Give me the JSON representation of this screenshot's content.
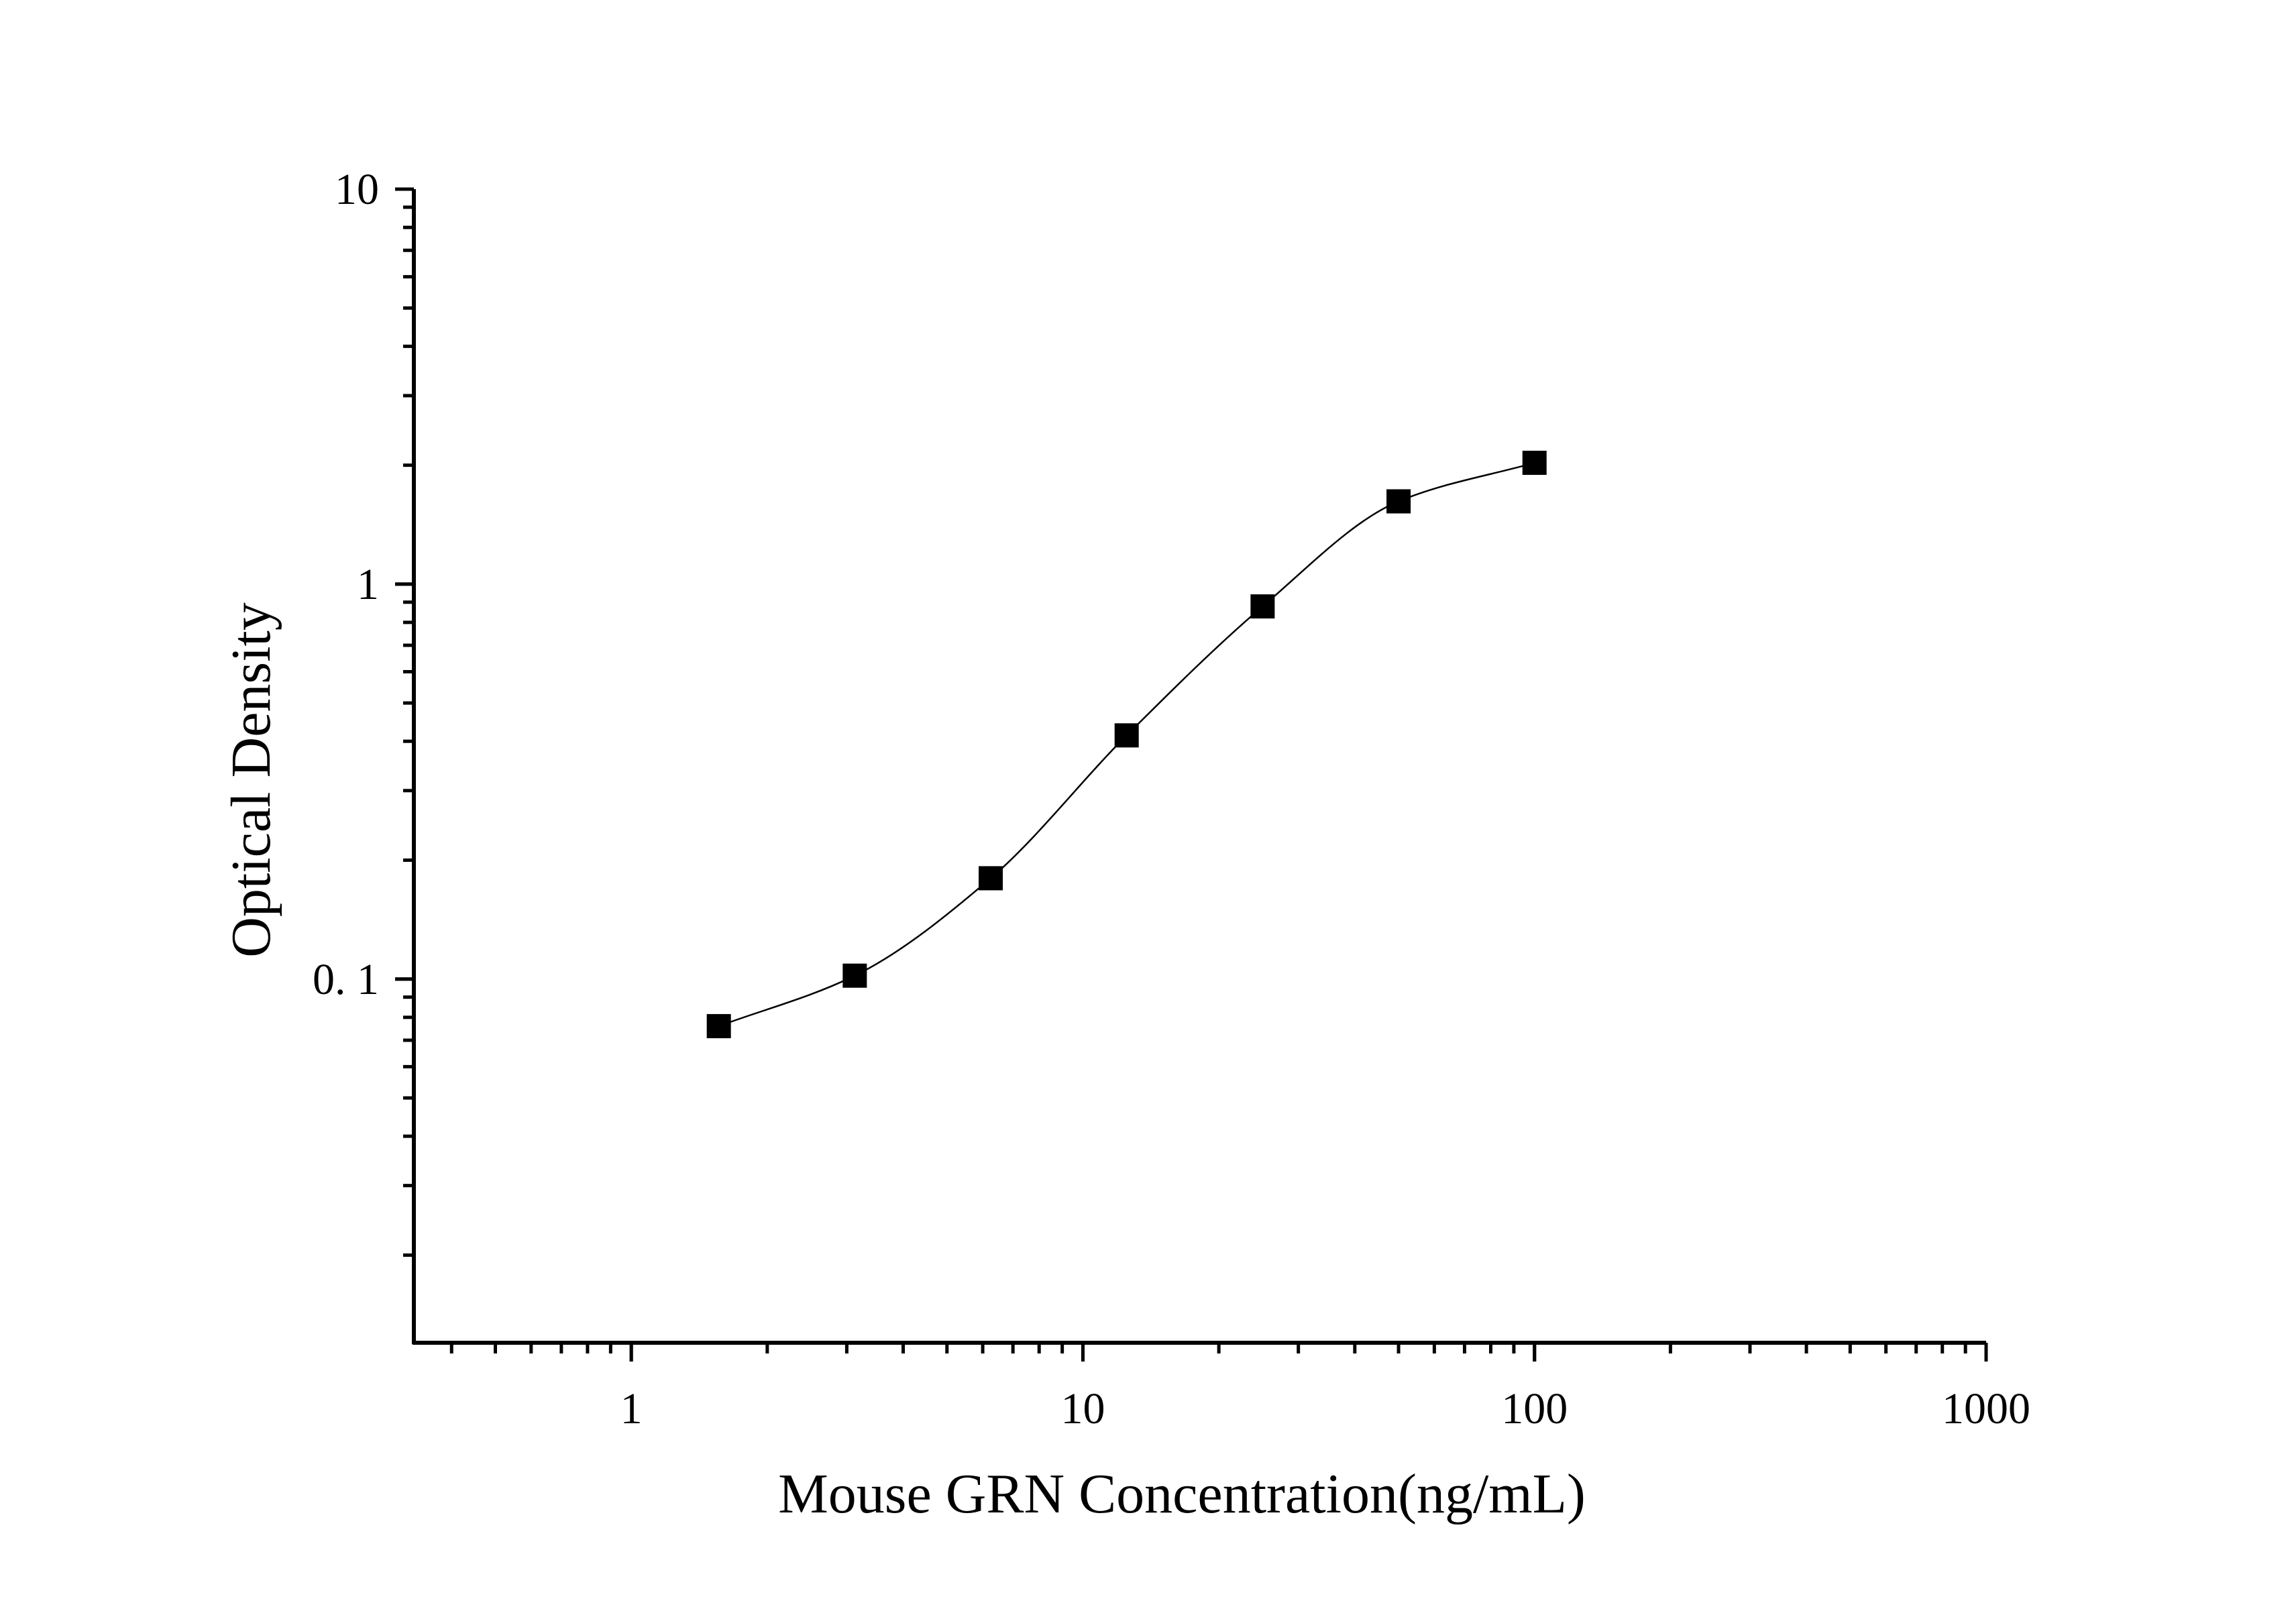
{
  "chart_data": {
    "type": "scatter",
    "title": "",
    "xlabel": "Mouse GRN Concentration(ng/mL)",
    "ylabel": "Optical Density",
    "x_scale": "log",
    "y_scale": "log",
    "xlim": [
      0.33,
      1000
    ],
    "ylim": [
      0.012,
      10
    ],
    "x_tick_labels": [
      "1",
      "10",
      "100",
      "1000"
    ],
    "x_tick_values": [
      1,
      10,
      100,
      1000
    ],
    "y_tick_labels": [
      "0. 1",
      "1",
      "10"
    ],
    "y_tick_values": [
      0.1,
      1,
      10
    ],
    "grid": false,
    "legend": "none",
    "marker": "square",
    "series": [
      {
        "x": [
          1.5625,
          3.125,
          6.25,
          12.5,
          25,
          50,
          100
        ],
        "y": [
          0.076,
          0.102,
          0.18,
          0.414,
          0.878,
          1.62,
          2.028
        ]
      }
    ],
    "fit_curve": "smooth sigmoid through points",
    "colors": {
      "marker": "#000000",
      "line": "#000000",
      "axis": "#000000"
    }
  }
}
